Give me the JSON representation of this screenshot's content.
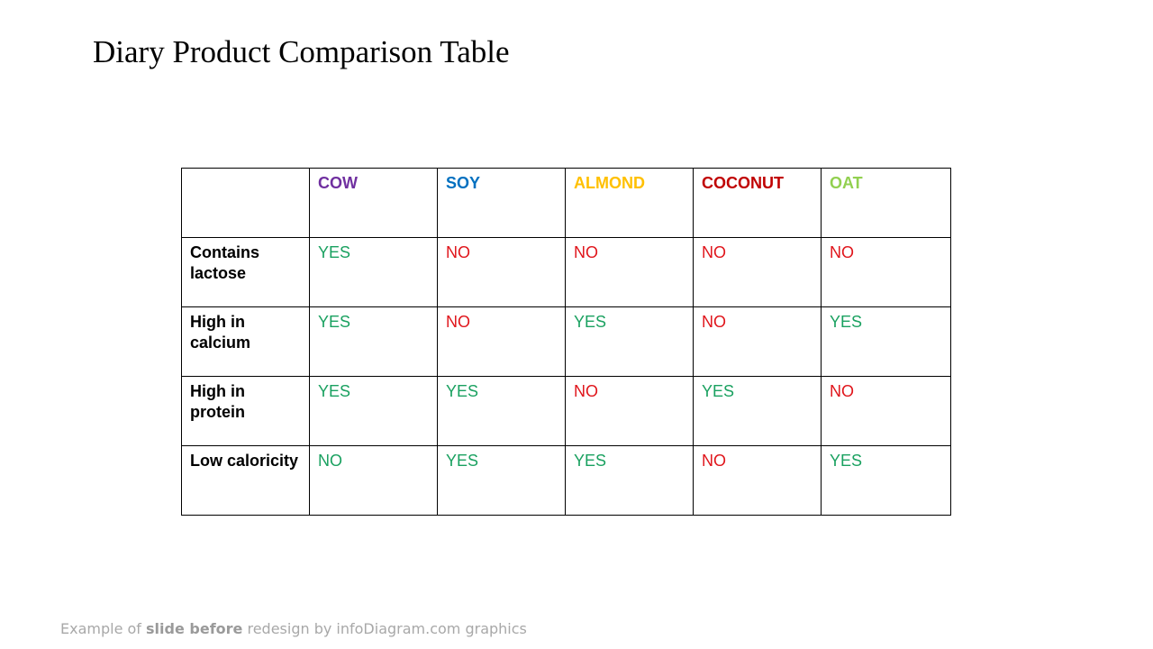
{
  "title": "Diary Product Comparison Table",
  "table": {
    "columns": [
      {
        "label": "COW",
        "color": "#7030a0"
      },
      {
        "label": "SOY",
        "color": "#0070c0"
      },
      {
        "label": "ALMOND",
        "color": "#ffc000"
      },
      {
        "label": "COCONUT",
        "color": "#c00000"
      },
      {
        "label": "OAT",
        "color": "#92d050"
      }
    ],
    "rows": [
      {
        "label": "Contains lactose",
        "values": [
          "YES",
          "NO",
          "NO",
          "NO",
          "NO"
        ]
      },
      {
        "label": "High in calcium",
        "values": [
          "YES",
          "NO",
          "YES",
          "NO",
          "YES"
        ]
      },
      {
        "label": "High in protein",
        "values": [
          "YES",
          "YES",
          "NO",
          "YES",
          "NO"
        ]
      },
      {
        "label": "Low caloricity",
        "values": [
          "NO",
          "YES",
          "YES",
          "NO",
          "YES"
        ]
      }
    ],
    "status_colors": {
      "yes": "#1aa160",
      "no": "#e0151b",
      "cow_low_caloricity_no": "#1aa160"
    }
  },
  "footer": {
    "prefix": "Example of ",
    "bold": "slide before",
    "suffix": " redesign by infoDiagram.com graphics"
  }
}
